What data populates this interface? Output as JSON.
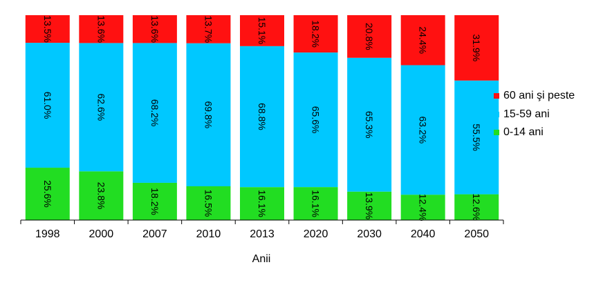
{
  "chart_data": {
    "type": "bar",
    "stacked": "percent",
    "categories": [
      "1998",
      "2000",
      "2007",
      "2010",
      "2013",
      "2020",
      "2030",
      "2040",
      "2050"
    ],
    "series": [
      {
        "name": "0-14 ani",
        "color": "#22dd22",
        "values": [
          25.6,
          23.8,
          18.2,
          16.5,
          16.1,
          16.1,
          13.9,
          12.4,
          12.6
        ],
        "labels": [
          "25.6%",
          "23.8%",
          "18.2%",
          "16.5%",
          "16.1%",
          "16.1%",
          "13.9%",
          "12.4%",
          "12.6%"
        ]
      },
      {
        "name": "15-59 ani",
        "color": "#00c8ff",
        "values": [
          61.0,
          62.6,
          68.2,
          69.8,
          68.8,
          65.6,
          65.3,
          63.2,
          55.5
        ],
        "labels": [
          "61.0%",
          "62.6%",
          "68.2%",
          "69.8%",
          "68.8%",
          "65.6%",
          "65.3%",
          "63.2%",
          "55.5%"
        ]
      },
      {
        "name": "60 ani şi peste",
        "color": "#ff1111",
        "values": [
          13.5,
          13.6,
          13.6,
          13.7,
          15.1,
          18.2,
          20.8,
          24.4,
          31.9
        ],
        "labels": [
          "13.5%",
          "13.6%",
          "13.6%",
          "13.7%",
          "15.1%",
          "18.2%",
          "20.8%",
          "24.4%",
          "31.9%"
        ]
      }
    ],
    "xlabel": "Anii",
    "ylabel": "",
    "ylim": [
      0,
      100
    ],
    "grid": false,
    "legend_position": "right"
  }
}
